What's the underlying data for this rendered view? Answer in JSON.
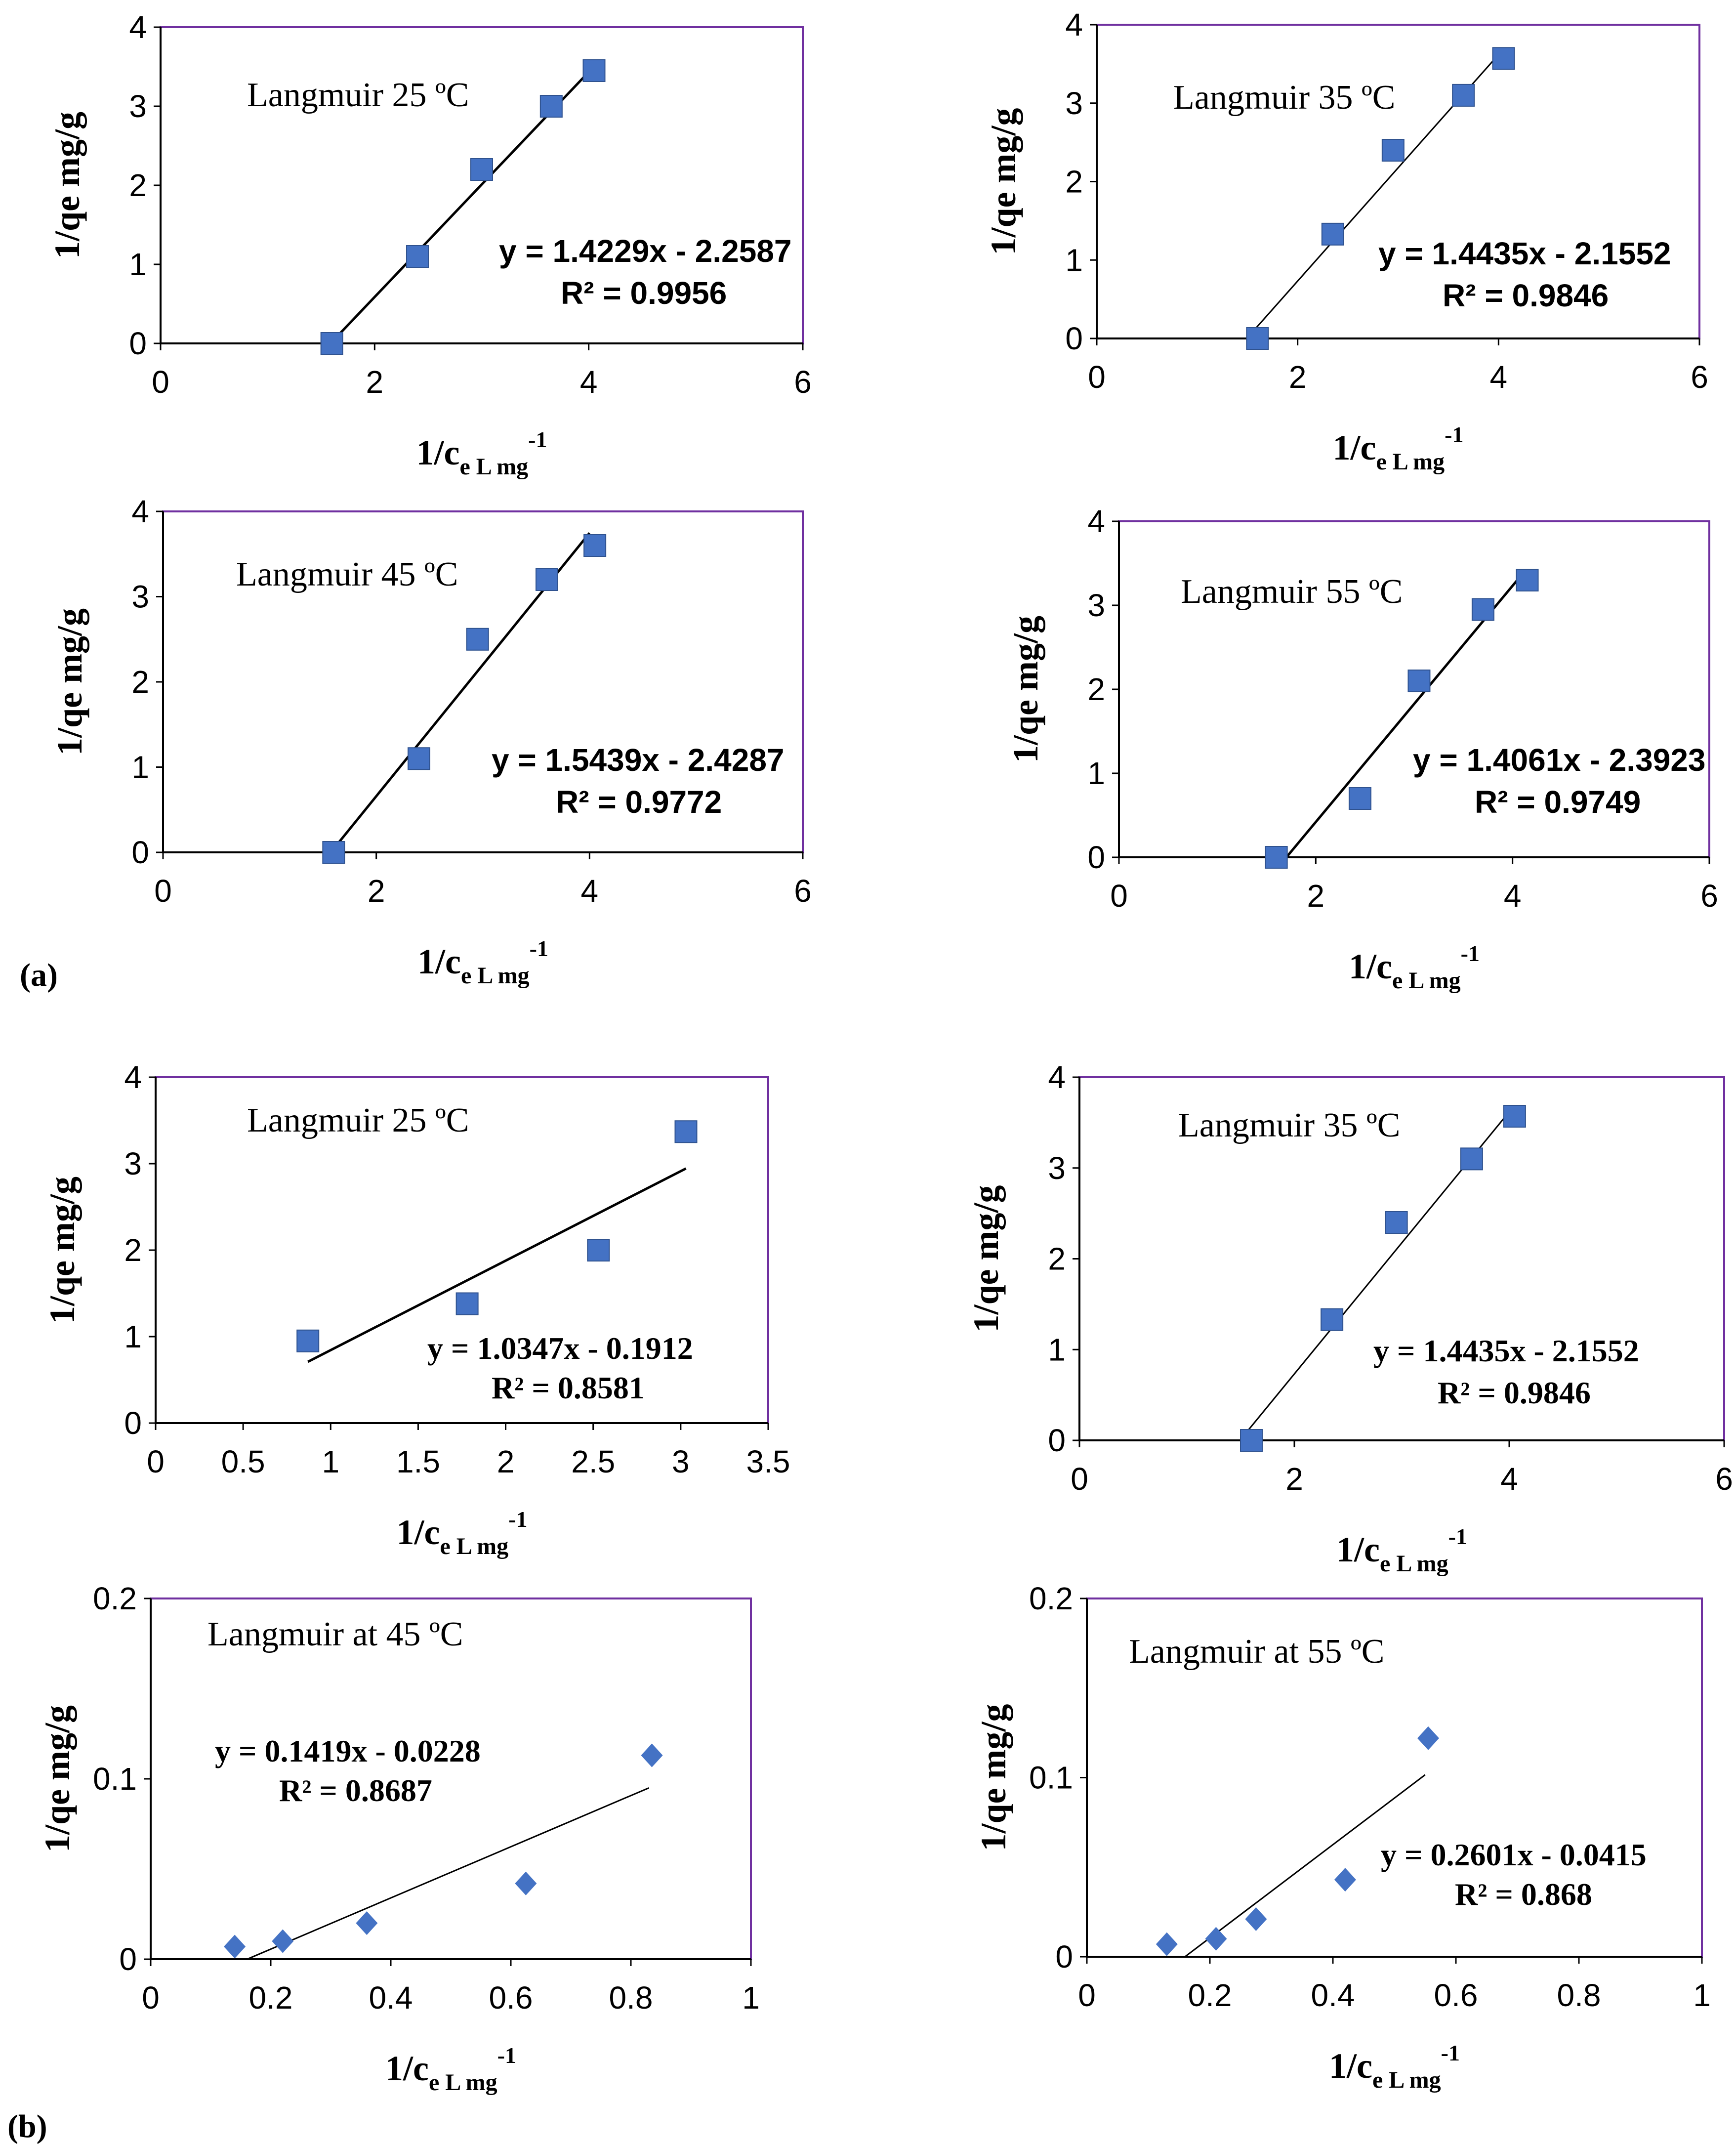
{
  "figure": {
    "panel_labels": [
      "(a)",
      "(b)"
    ],
    "marker_color": "#4472C4",
    "frame_color": "#7030A0"
  },
  "chart_data": [
    {
      "id": "a1",
      "type": "scatter",
      "title": "Langmuir 25 ºC",
      "xlabel": "1/ce  L mg-1",
      "ylabel": "1/qe mg/g",
      "xlim": [
        0,
        6
      ],
      "ylim": [
        0,
        4
      ],
      "xticks": [
        "0",
        "2",
        "4",
        "6"
      ],
      "yticks": [
        "0",
        "1",
        "2",
        "3",
        "4"
      ],
      "marker": "square",
      "x": [
        1.6,
        2.4,
        3.0,
        3.65,
        4.05
      ],
      "y": [
        0.0,
        1.1,
        2.2,
        3.0,
        3.45
      ],
      "trendline": {
        "slope": 1.4229,
        "intercept": -2.2587,
        "x_range": [
          1.6,
          4.1
        ]
      },
      "equation": "y = 1.4229x - 2.2587",
      "r2": "R² = 0.9956"
    },
    {
      "id": "a2",
      "type": "scatter",
      "title": "Langmuir 35 ºC",
      "xlabel": "1/ce  L mg-1",
      "ylabel": "1/qe mg/g",
      "xlim": [
        0,
        6
      ],
      "ylim": [
        0,
        4
      ],
      "xticks": [
        "0",
        "2",
        "4",
        "6"
      ],
      "yticks": [
        "0",
        "1",
        "2",
        "3",
        "4"
      ],
      "marker": "square",
      "x": [
        1.6,
        2.35,
        2.95,
        3.65,
        4.05
      ],
      "y": [
        0.0,
        1.33,
        2.4,
        3.1,
        3.57
      ],
      "trendline": {
        "slope": 1.4435,
        "intercept": -2.1552,
        "x_range": [
          1.5,
          4.0
        ]
      },
      "equation": "y = 1.4435x - 2.1552",
      "r2": "R² = 0.9846"
    },
    {
      "id": "a3",
      "type": "scatter",
      "title": "Langmuir 45 ºC",
      "xlabel": "1/ce  L mg-1",
      "ylabel": "1/qe mg/g",
      "xlim": [
        0,
        6
      ],
      "ylim": [
        0,
        4
      ],
      "xticks": [
        "0",
        "2",
        "4",
        "6"
      ],
      "yticks": [
        "0",
        "1",
        "2",
        "3",
        "4"
      ],
      "marker": "square",
      "x": [
        1.6,
        2.4,
        2.95,
        3.6,
        4.05
      ],
      "y": [
        0.0,
        1.1,
        2.5,
        3.2,
        3.6
      ],
      "trendline": {
        "slope": 1.5439,
        "intercept": -2.4287,
        "x_range": [
          1.6,
          4.0
        ]
      },
      "equation": "y = 1.5439x - 2.4287",
      "r2": "R² = 0.9772"
    },
    {
      "id": "a4",
      "type": "scatter",
      "title": "Langmuir 55 ºC",
      "xlabel": "1/ce  L mg-1",
      "ylabel": "1/qe mg/g",
      "xlim": [
        0,
        6
      ],
      "ylim": [
        0,
        4
      ],
      "xticks": [
        "0",
        "2",
        "4",
        "6"
      ],
      "yticks": [
        "0",
        "1",
        "2",
        "3",
        "4"
      ],
      "marker": "square",
      "x": [
        1.6,
        2.45,
        3.05,
        3.7,
        4.15
      ],
      "y": [
        0.0,
        0.7,
        2.1,
        2.95,
        3.3
      ],
      "trendline": {
        "slope": 1.4061,
        "intercept": -2.3923,
        "x_range": [
          1.7,
          4.1
        ]
      },
      "equation": "y = 1.4061x - 2.3923",
      "r2": "R² = 0.9749"
    },
    {
      "id": "b1",
      "type": "scatter",
      "title": "Langmuir 25 ºC",
      "xlabel": "1/ce  L mg-1",
      "ylabel": "1/qe mg/g",
      "xlim": [
        0,
        3.5
      ],
      "ylim": [
        0,
        4
      ],
      "xticks": [
        "0",
        "0.5",
        "1",
        "1.5",
        "2",
        "2.5",
        "3",
        "3.5"
      ],
      "yticks": [
        "0",
        "1",
        "2",
        "3",
        "4"
      ],
      "marker": "square",
      "x": [
        0.87,
        1.78,
        2.53,
        3.03
      ],
      "y": [
        0.95,
        1.38,
        2.0,
        3.37
      ],
      "trendline": {
        "slope": 1.0347,
        "intercept": -0.1912,
        "x_range": [
          0.87,
          3.03
        ]
      },
      "equation": "y = 1.0347x - 0.1912",
      "r2": "R² = 0.8581"
    },
    {
      "id": "b2",
      "type": "scatter",
      "title": "Langmuir 35 ºC",
      "xlabel": "1/ce  L mg-1",
      "ylabel": "1/qe mg/g",
      "xlim": [
        0,
        6
      ],
      "ylim": [
        0,
        4
      ],
      "xticks": [
        "0",
        "2",
        "4",
        "6"
      ],
      "yticks": [
        "0",
        "1",
        "2",
        "3",
        "4"
      ],
      "marker": "square",
      "x": [
        1.6,
        2.35,
        2.95,
        3.65,
        4.05
      ],
      "y": [
        0.0,
        1.33,
        2.4,
        3.1,
        3.57
      ],
      "trendline": {
        "slope": 1.4435,
        "intercept": -2.1552,
        "x_range": [
          1.5,
          4.0
        ]
      },
      "equation": "y = 1.4435x - 2.1552",
      "r2": "R² = 0.9846"
    },
    {
      "id": "b3",
      "type": "scatter",
      "title": "Langmuir at 45 ºC",
      "xlabel": "1/ce  L mg-1",
      "ylabel": "1/qe mg/g",
      "xlim": [
        0,
        1
      ],
      "ylim": [
        0,
        0.2
      ],
      "xticks": [
        "0",
        "0.2",
        "0.4",
        "0.6",
        "0.8",
        "1"
      ],
      "yticks": [
        "0",
        "0.1",
        "0.2"
      ],
      "marker": "diamond",
      "x": [
        0.14,
        0.22,
        0.36,
        0.625,
        0.835
      ],
      "y": [
        0.007,
        0.01,
        0.02,
        0.042,
        0.113
      ],
      "trendline": {
        "slope": 0.1419,
        "intercept": -0.0228,
        "x_range": [
          0.16,
          0.83
        ]
      },
      "equation": "y = 0.1419x - 0.0228",
      "r2": "R² = 0.8687"
    },
    {
      "id": "b4",
      "type": "scatter",
      "title": "Langmuir at 55 ºC",
      "xlabel": "1/ce  L mg-1",
      "ylabel": "1/qe mg/g",
      "xlim": [
        0,
        1
      ],
      "ylim": [
        0,
        0.2
      ],
      "xticks": [
        "0",
        "0.2",
        "0.4",
        "0.6",
        "0.8",
        "1"
      ],
      "yticks": [
        "0",
        "0.1",
        "0.2"
      ],
      "marker": "diamond",
      "x": [
        0.13,
        0.21,
        0.275,
        0.42,
        0.555
      ],
      "y": [
        0.007,
        0.01,
        0.021,
        0.043,
        0.122
      ],
      "trendline": {
        "slope": 0.2601,
        "intercept": -0.0415,
        "x_range": [
          0.16,
          0.55
        ]
      },
      "equation": "y = 0.2601x - 0.0415",
      "r2": "R² = 0.868"
    }
  ]
}
